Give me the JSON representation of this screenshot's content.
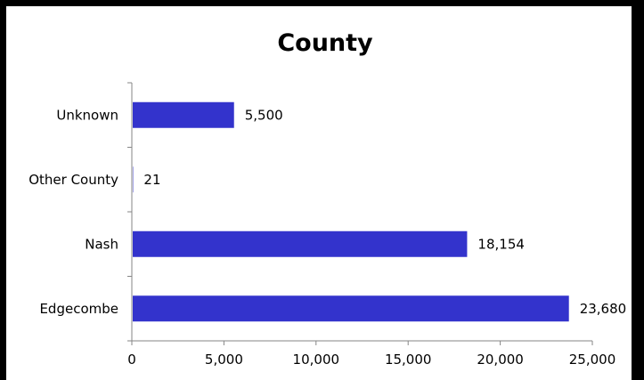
{
  "chart_data": {
    "type": "bar",
    "orientation": "horizontal",
    "title": "County",
    "xlabel": "",
    "ylabel": "",
    "categories": [
      "Unknown",
      "Other County",
      "Nash",
      "Edgecombe"
    ],
    "values": [
      5500,
      21,
      18154,
      23680
    ],
    "data_labels": [
      "5,500",
      "21",
      "18,154",
      "23,680"
    ],
    "xlim": [
      0,
      25000
    ],
    "xticks": [
      0,
      5000,
      10000,
      15000,
      20000,
      25000
    ],
    "xtick_labels": [
      "0",
      "5,000",
      "10,000",
      "15,000",
      "20,000",
      "25,000"
    ],
    "bar_color": "#3333cc",
    "grid": false,
    "legend": "none"
  }
}
